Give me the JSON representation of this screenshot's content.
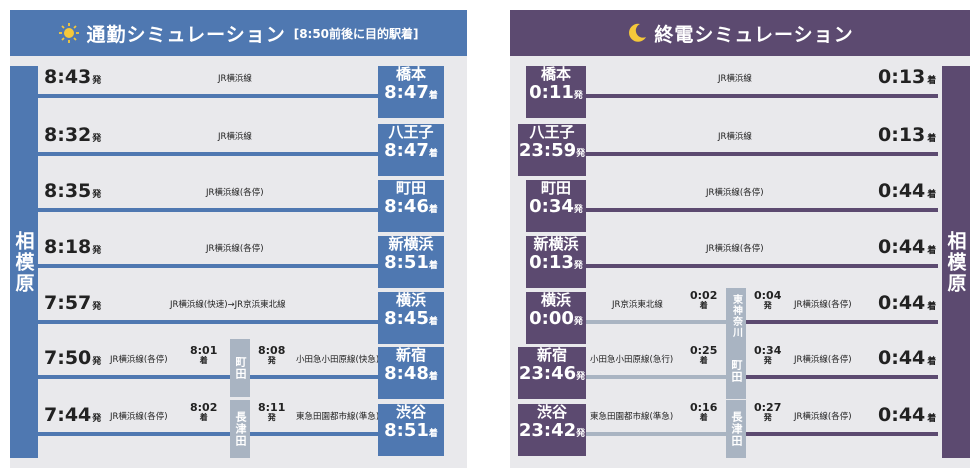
{
  "commute": {
    "title": "通勤シミュレーション",
    "subtitle": "[8:50前後に目的駅着]",
    "origin": "相模原",
    "dep_suffix": "発",
    "arr_suffix": "着",
    "rows": [
      {
        "dep": "8:43",
        "line": "JR横浜線",
        "dest": "橋本",
        "arr": "8:47"
      },
      {
        "dep": "8:32",
        "line": "JR横浜線",
        "dest": "八王子",
        "arr": "8:47"
      },
      {
        "dep": "8:35",
        "line": "JR横浜線(各停)",
        "dest": "町田",
        "arr": "8:46"
      },
      {
        "dep": "8:18",
        "line": "JR横浜線(各停)",
        "dest": "新横浜",
        "arr": "8:51"
      },
      {
        "dep": "7:57",
        "line": "JR横浜線(快速)→JR京浜東北線",
        "dest": "横浜",
        "arr": "8:45"
      },
      {
        "dep": "7:50",
        "line": "JR横浜線(各停)",
        "t_arr": "8:01",
        "transfer": "町田",
        "t_dep": "8:08",
        "line2": "小田急小田原線(快急)",
        "dest": "新宿",
        "arr": "8:48"
      },
      {
        "dep": "7:44",
        "line": "JR横浜線(各停)",
        "t_arr": "8:02",
        "transfer": "長津田",
        "t_dep": "8:11",
        "line2": "東急田園都市線(準急)",
        "dest": "渋谷",
        "arr": "8:51"
      }
    ]
  },
  "lasttrain": {
    "title": "終電シミュレーション",
    "dest_station": "相模原",
    "dep_suffix": "発",
    "arr_suffix": "着",
    "rows": [
      {
        "origin": "橋本",
        "dep": "0:11",
        "line": "JR横浜線",
        "arr": "0:13"
      },
      {
        "origin": "八王子",
        "dep": "23:59",
        "line": "JR横浜線",
        "arr": "0:13"
      },
      {
        "origin": "町田",
        "dep": "0:34",
        "line": "JR横浜線(各停)",
        "arr": "0:44"
      },
      {
        "origin": "新横浜",
        "dep": "0:13",
        "line": "JR横浜線(各停)",
        "arr": "0:44"
      },
      {
        "origin": "横浜",
        "dep": "0:00",
        "line": "JR京浜東北線",
        "t_arr": "0:02",
        "transfer": "東神奈川",
        "t_dep": "0:04",
        "line2": "JR横浜線(各停)",
        "arr": "0:44"
      },
      {
        "origin": "新宿",
        "dep": "23:46",
        "line": "小田急小田原線(急行)",
        "t_arr": "0:25",
        "transfer": "町田",
        "t_dep": "0:34",
        "line2": "JR横浜線(各停)",
        "arr": "0:44"
      },
      {
        "origin": "渋谷",
        "dep": "23:42",
        "line": "東急田園都市線(準急)",
        "t_arr": "0:16",
        "transfer": "長津田",
        "t_dep": "0:27",
        "line2": "JR横浜線(各停)",
        "arr": "0:44"
      }
    ]
  }
}
